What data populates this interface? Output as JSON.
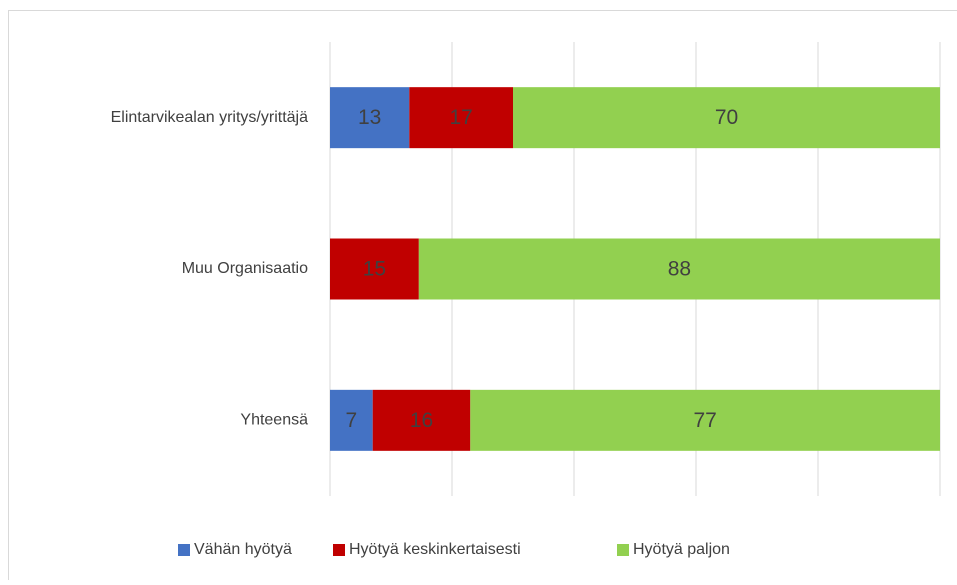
{
  "chart_data": {
    "type": "bar",
    "orientation": "horizontal",
    "stacking": "percent",
    "categories": [
      "Elintarvikealan yritys/yrittäjä",
      "Muu Organisaatio",
      "Yhteensä"
    ],
    "series": [
      {
        "name": "Vähän hyötyä",
        "color": "#4472c4",
        "values": [
          13,
          null,
          7
        ]
      },
      {
        "name": "Hyötyä keskinkertaisesti",
        "color": "#c00000",
        "values": [
          17,
          15,
          16
        ]
      },
      {
        "name": "Hyötyä paljon",
        "color": "#92d050",
        "values": [
          70,
          88,
          77
        ]
      }
    ],
    "xlim": [
      0,
      100
    ],
    "xticks": [
      0,
      20,
      40,
      60,
      80,
      100
    ],
    "grid": true,
    "legend": "bottom"
  }
}
